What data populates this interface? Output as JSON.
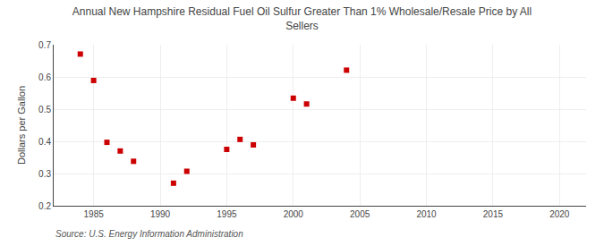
{
  "chart_data": {
    "type": "scatter",
    "title": "Annual New Hampshire Residual Fuel Oil Sulfur Greater Than 1% Wholesale/Resale Price by All\nSellers",
    "ylabel": "Dollars per Gallon",
    "annotations": [
      "Source: U.S. Energy Information Administration"
    ],
    "x": [
      1984,
      1985,
      1986,
      1987,
      1988,
      1991,
      1992,
      1995,
      1996,
      1997,
      2000,
      2001,
      2004
    ],
    "values": [
      0.671,
      0.589,
      0.397,
      0.37,
      0.338,
      0.27,
      0.307,
      0.375,
      0.406,
      0.389,
      0.534,
      0.516,
      0.621
    ],
    "color": "#cc0000",
    "marker": "square",
    "xlim": [
      1982,
      2022
    ],
    "ylim": [
      0.2,
      0.7
    ],
    "xticks": [
      1985,
      1990,
      1995,
      2000,
      2005,
      2010,
      2015,
      2020
    ],
    "yticks": [
      0.2,
      0.3,
      0.4,
      0.5,
      0.6,
      0.7
    ],
    "grid": true
  }
}
